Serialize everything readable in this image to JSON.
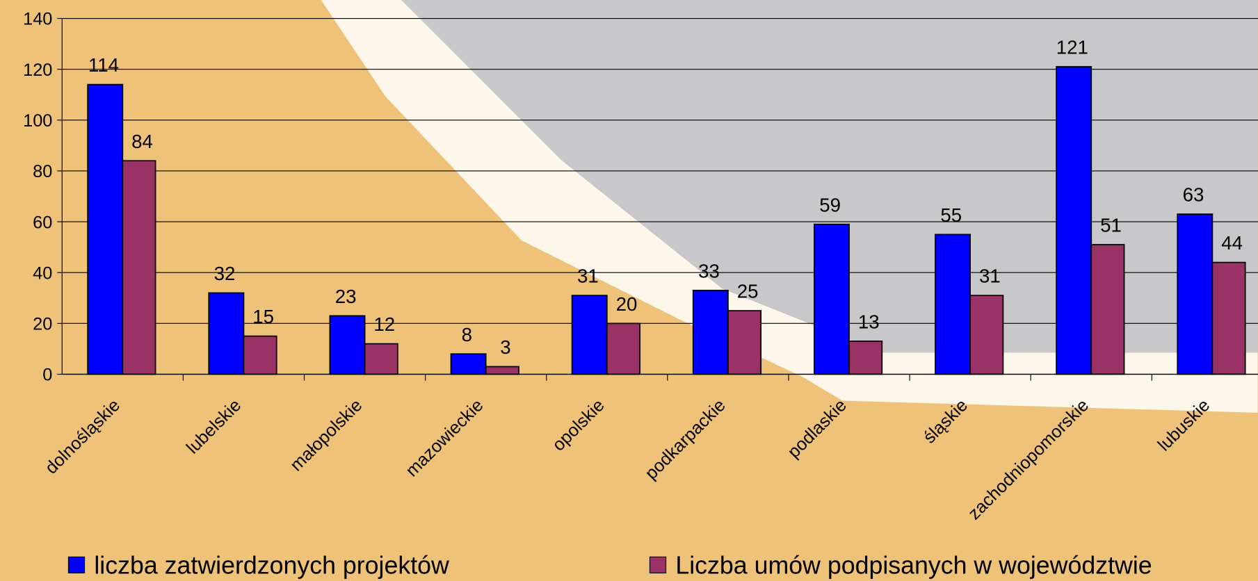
{
  "chart_data": {
    "type": "bar",
    "categories": [
      "dolnośląskie",
      "lubelskie",
      "małopolskie",
      "mazowieckie",
      "opolskie",
      "podkarpackie",
      "podlaskie",
      "śląskie",
      "zachodniopomorskie",
      "lubuskie"
    ],
    "series": [
      {
        "name": "liczba zatwierdzonych projektów",
        "color": "#0000ff",
        "values": [
          114,
          32,
          23,
          8,
          31,
          33,
          59,
          55,
          121,
          63
        ]
      },
      {
        "name": "Liczba umów podpisanych w województwie",
        "color": "#993366",
        "values": [
          84,
          15,
          12,
          3,
          20,
          25,
          13,
          31,
          51,
          44
        ]
      }
    ],
    "ylim": [
      0,
      140
    ],
    "yticks": [
      0,
      20,
      40,
      60,
      80,
      100,
      120,
      140
    ],
    "grid": true,
    "legend": "bottom"
  }
}
